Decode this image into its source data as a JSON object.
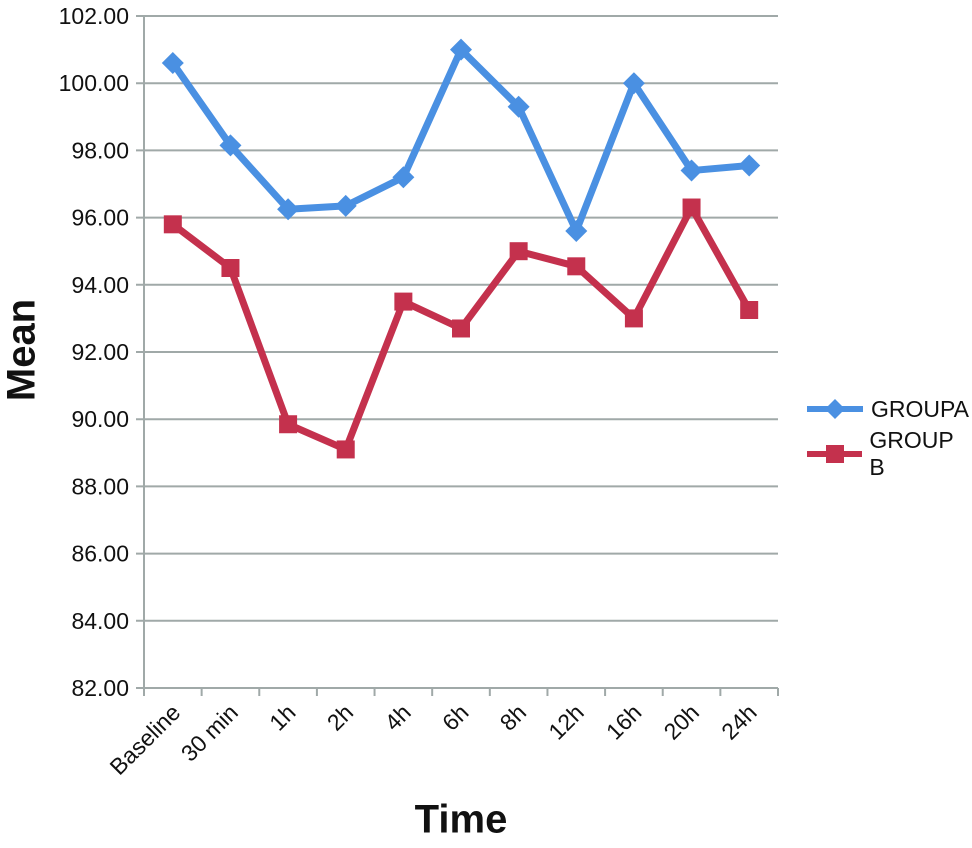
{
  "chart_data": {
    "type": "line",
    "title": "",
    "xlabel": "Time",
    "ylabel": "Mean",
    "categories": [
      "Baseline",
      "30 min",
      "1h",
      "2h",
      "4h",
      "6h",
      "8h",
      "12h",
      "16h",
      "20h",
      "24h"
    ],
    "series": [
      {
        "name": "GROUPA",
        "marker": "diamond",
        "color": "#4A90E2",
        "values": [
          100.6,
          98.15,
          96.25,
          96.35,
          97.2,
          101.0,
          99.3,
          95.6,
          100.0,
          97.4,
          97.55
        ]
      },
      {
        "name": "GROUP B",
        "marker": "square",
        "color": "#C4314D",
        "values": [
          95.8,
          94.5,
          89.85,
          89.1,
          93.5,
          92.7,
          95.0,
          94.55,
          93.0,
          96.3,
          93.25
        ]
      }
    ],
    "ylim": [
      82,
      102
    ],
    "ytick_step": 2,
    "ytick_labels": [
      "102.00",
      "100.00",
      "98.00",
      "96.00",
      "94.00",
      "92.00",
      "90.00",
      "88.00",
      "86.00",
      "84.00",
      "82.00"
    ],
    "grid": true,
    "legend_position": "right"
  }
}
